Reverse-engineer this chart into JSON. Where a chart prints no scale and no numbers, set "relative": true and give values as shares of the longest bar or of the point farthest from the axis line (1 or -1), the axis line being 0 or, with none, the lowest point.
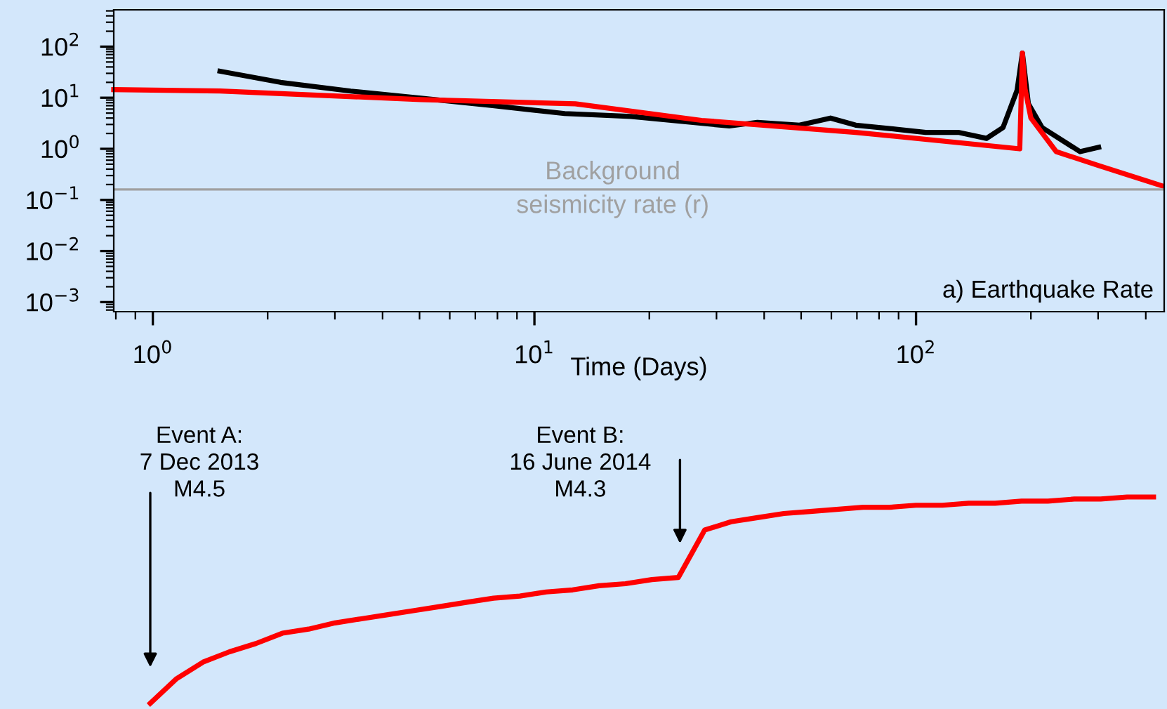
{
  "chart_data": [
    {
      "type": "line",
      "title": "a) Earthquake Rate",
      "xlabel": "Time (Days)",
      "log": "xy",
      "xlim": [
        0.79,
        447
      ],
      "ylim": [
        0.00065,
        525
      ],
      "xticks": [
        {
          "value": 1,
          "label": "10$^{0}$"
        },
        {
          "value": 10,
          "label": "10$^{1}$"
        },
        {
          "value": 100,
          "label": "10$^{2}$"
        }
      ],
      "yticks": [
        {
          "value": 0.001,
          "label": "10$^{−3}$"
        },
        {
          "value": 0.01,
          "label": "10$^{−2}$"
        },
        {
          "value": 0.1,
          "label": "10$^{−1}$"
        },
        {
          "value": 1,
          "label": "10$^{0}$"
        },
        {
          "value": 10,
          "label": "10$^{1}$"
        },
        {
          "value": 100,
          "label": "10$^{2}$"
        }
      ],
      "grid": false,
      "ref_lines": [
        {
          "axis": "y",
          "value": 0.16,
          "label": "Background\nseismicity rate (r)",
          "color": "#a0a0a0",
          "line_style": "solid"
        }
      ],
      "series": [
        {
          "color": "#000000",
          "x": [
            1.5,
            2.16,
            3.3,
            5.04,
            7.7,
            12,
            17.9,
            32.4,
            38.4,
            49.5,
            59.7,
            69.5,
            89.5,
            106,
            129,
            153,
            169,
            184,
            190,
            197,
            214,
            269,
            301
          ],
          "values": [
            33,
            20,
            13.5,
            9.8,
            7.1,
            4.9,
            4.3,
            2.8,
            3.3,
            2.9,
            4.0,
            2.9,
            2.4,
            2.1,
            2.1,
            1.6,
            2.6,
            14,
            75,
            7.6,
            2.6,
            0.88,
            1.07
          ]
        },
        {
          "color": "#ff0000",
          "x": [
            0.79,
            1.5,
            5.04,
            12.8,
            27.4,
            69.5,
            187,
            190,
            193,
            200,
            233,
            301,
            440
          ],
          "values": [
            14.4,
            13.5,
            9.2,
            7.6,
            3.6,
            2.1,
            1.0,
            75,
            15,
            4.0,
            0.88,
            0.47,
            0.19
          ]
        }
      ]
    },
    {
      "type": "line",
      "relative": true,
      "grid": false,
      "categories": [
        null,
        null,
        null,
        null,
        null,
        null,
        null,
        null,
        null,
        null,
        null,
        null,
        null,
        null,
        null,
        null,
        null,
        null,
        null,
        null,
        null,
        null,
        null,
        null,
        null,
        null,
        null,
        null,
        null,
        null,
        null,
        null,
        null,
        null,
        null,
        null,
        null,
        null,
        null
      ],
      "annotations": [
        "Event A:\n7 Dec 2013\nM4.5",
        "Event B:\n16 June 2014\nM4.3"
      ],
      "series": [
        {
          "color": "#ff0000",
          "values": [
            0,
            0.12,
            0.2,
            0.25,
            0.29,
            0.34,
            0.36,
            0.39,
            0.41,
            0.43,
            0.45,
            0.47,
            0.49,
            0.51,
            0.52,
            0.54,
            0.55,
            0.57,
            0.58,
            0.6,
            0.61,
            0.84,
            0.88,
            0.9,
            0.92,
            0.93,
            0.94,
            0.95,
            0.95,
            0.96,
            0.96,
            0.97,
            0.97,
            0.98,
            0.98,
            0.99,
            0.99,
            1,
            1
          ]
        }
      ]
    }
  ]
}
